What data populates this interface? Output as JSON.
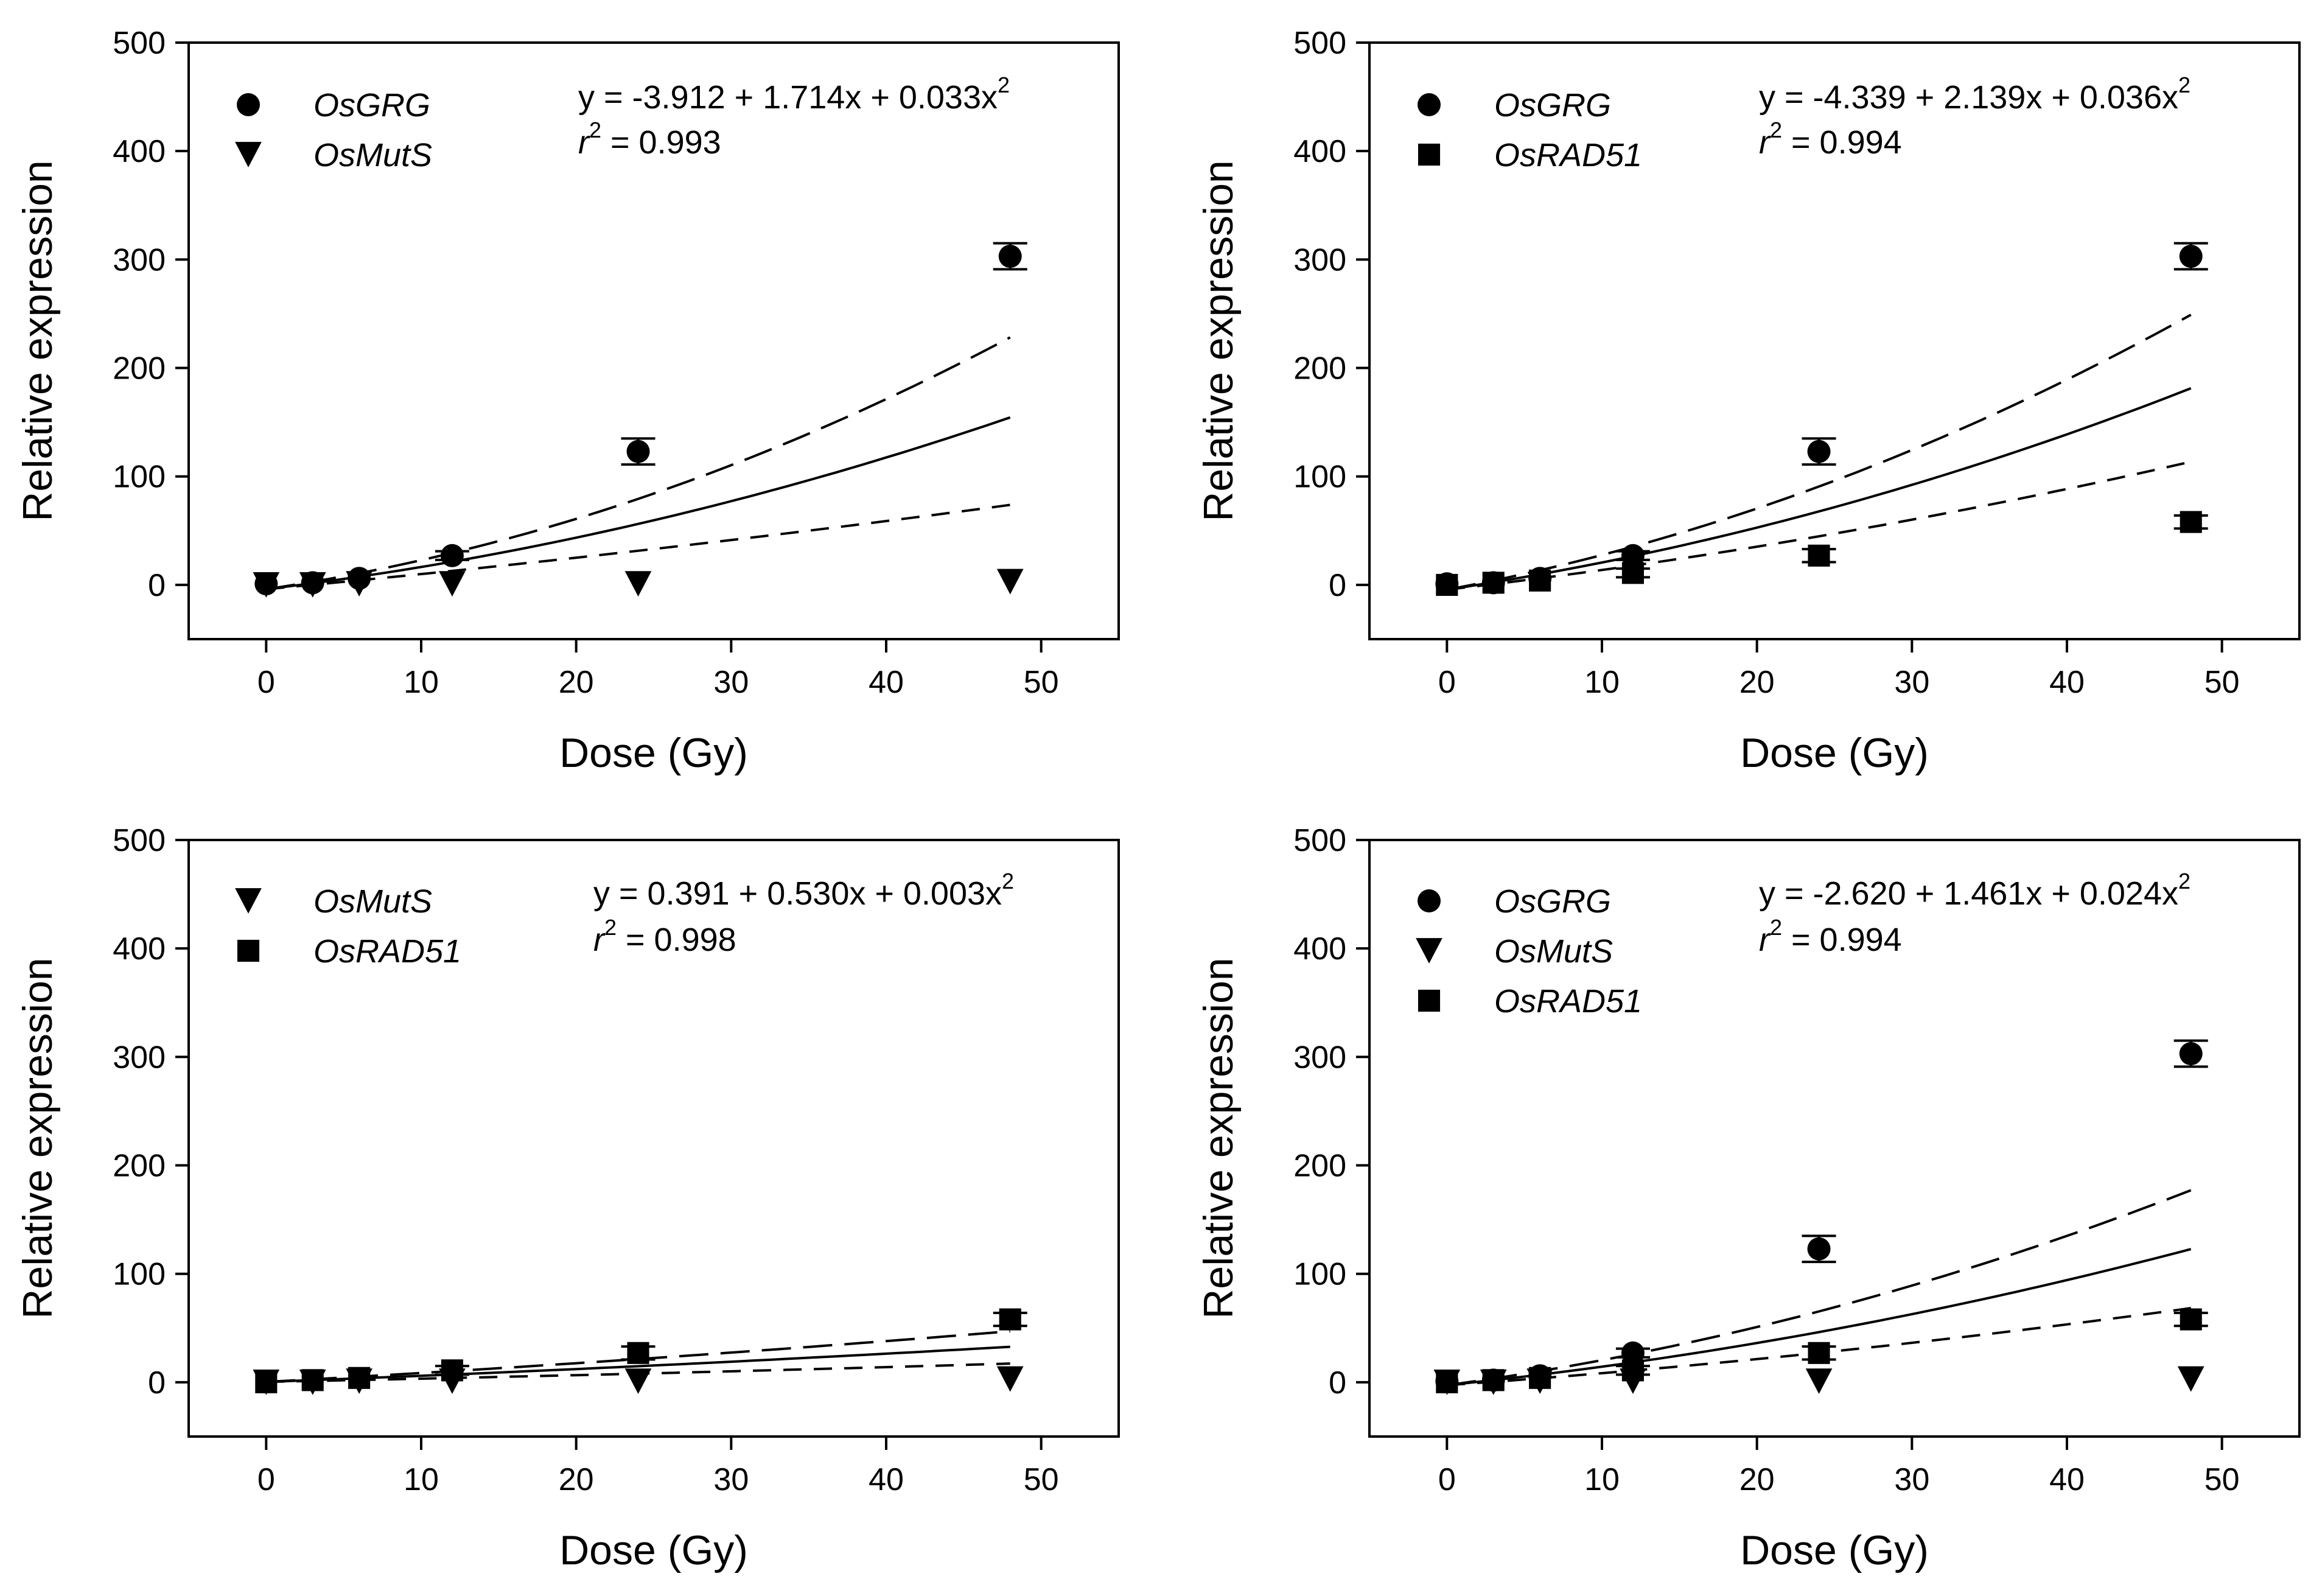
{
  "chart_data": [
    {
      "type": "scatter",
      "panel": "top-left",
      "xlabel": "Dose (Gy)",
      "ylabel": "Relative expression",
      "xlim": [
        -5,
        55
      ],
      "ylim": [
        -50,
        500
      ],
      "xticks": [
        0,
        10,
        20,
        30,
        40,
        50
      ],
      "yticks": [
        0,
        100,
        200,
        300,
        400,
        500
      ],
      "x": [
        0,
        3,
        6,
        12,
        24,
        48
      ],
      "series": [
        {
          "name": "OsGRG",
          "marker": "circle",
          "values": [
            1,
            2,
            6,
            27,
            123,
            303
          ],
          "errors": [
            2,
            2,
            3,
            4,
            12,
            12
          ]
        },
        {
          "name": "OsMutS",
          "marker": "triangle-down",
          "values": [
            0,
            0,
            1,
            1,
            1,
            3
          ],
          "errors": [
            1,
            1,
            1,
            1,
            1,
            1
          ]
        }
      ],
      "fit": {
        "a": -3.912,
        "b": 1.714,
        "c": 0.033,
        "upper": {
          "b": 2.1,
          "c": 0.057
        },
        "lower": {
          "b": 1.33,
          "c": 0.006
        },
        "x_range": [
          0,
          48
        ]
      },
      "equation_line1": "y = -3.912 + 1.714x + 0.033x",
      "equation_sup": "2",
      "r2_label": "r",
      "r2_sup": "2",
      "r2_value": " = 0.993"
    },
    {
      "type": "scatter",
      "panel": "top-right",
      "xlabel": "Dose (Gy)",
      "ylabel": "Relative expression",
      "xlim": [
        -5,
        55
      ],
      "ylim": [
        -50,
        500
      ],
      "xticks": [
        0,
        10,
        20,
        30,
        40,
        50
      ],
      "yticks": [
        0,
        100,
        200,
        300,
        400,
        500
      ],
      "x": [
        0,
        3,
        6,
        12,
        24,
        48
      ],
      "series": [
        {
          "name": "OsGRG",
          "marker": "circle",
          "values": [
            1,
            2,
            6,
            27,
            123,
            303
          ],
          "errors": [
            2,
            2,
            3,
            4,
            12,
            12
          ]
        },
        {
          "name": "OsRAD51",
          "marker": "square",
          "values": [
            0,
            2,
            4,
            11,
            27,
            58
          ],
          "errors": [
            2,
            2,
            2,
            4,
            6,
            6
          ]
        }
      ],
      "fit": {
        "a": -4.339,
        "b": 2.139,
        "c": 0.036,
        "upper": {
          "b": 2.64,
          "c": 0.055
        },
        "lower": {
          "b": 1.64,
          "c": 0.017
        },
        "x_range": [
          0,
          48
        ]
      },
      "equation_line1": "y = -4.339 + 2.139x + 0.036x",
      "equation_sup": "2",
      "r2_label": "r",
      "r2_sup": "2",
      "r2_value": " = 0.994"
    },
    {
      "type": "scatter",
      "panel": "bottom-left",
      "xlabel": "Dose (Gy)",
      "ylabel": "Relative expression",
      "xlim": [
        -5,
        55
      ],
      "ylim": [
        -50,
        500
      ],
      "xticks": [
        0,
        10,
        20,
        30,
        40,
        50
      ],
      "yticks": [
        0,
        100,
        200,
        300,
        400,
        500
      ],
      "x": [
        0,
        3,
        6,
        12,
        24,
        48
      ],
      "series": [
        {
          "name": "OsMutS",
          "marker": "triangle-down",
          "values": [
            0,
            0,
            1,
            1,
            1,
            3
          ],
          "errors": [
            1,
            1,
            1,
            1,
            1,
            1
          ]
        },
        {
          "name": "OsRAD51",
          "marker": "square",
          "values": [
            0,
            2,
            4,
            11,
            27,
            58
          ],
          "errors": [
            2,
            2,
            2,
            4,
            6,
            6
          ]
        }
      ],
      "fit": {
        "a": 0.391,
        "b": 0.53,
        "c": 0.003,
        "upper": {
          "b": 0.78,
          "c": 0.004
        },
        "lower": {
          "b": 0.28,
          "c": 0.0015
        },
        "x_range": [
          0,
          48
        ]
      },
      "equation_line1": "y = 0.391 + 0.530x + 0.003x",
      "equation_sup": "2",
      "r2_label": "r",
      "r2_sup": "2",
      "r2_value": " = 0.998"
    },
    {
      "type": "scatter",
      "panel": "bottom-right",
      "xlabel": "Dose (Gy)",
      "ylabel": "Relative expression",
      "xlim": [
        -5,
        55
      ],
      "ylim": [
        -50,
        500
      ],
      "xticks": [
        0,
        10,
        20,
        30,
        40,
        50
      ],
      "yticks": [
        0,
        100,
        200,
        300,
        400,
        500
      ],
      "x": [
        0,
        3,
        6,
        12,
        24,
        48
      ],
      "series": [
        {
          "name": "OsGRG",
          "marker": "circle",
          "values": [
            1,
            2,
            6,
            27,
            123,
            303
          ],
          "errors": [
            2,
            2,
            3,
            4,
            12,
            12
          ]
        },
        {
          "name": "OsMutS",
          "marker": "triangle-down",
          "values": [
            0,
            0,
            1,
            1,
            1,
            3
          ],
          "errors": [
            1,
            1,
            1,
            1,
            1,
            1
          ]
        },
        {
          "name": "OsRAD51",
          "marker": "square",
          "values": [
            0,
            2,
            4,
            11,
            27,
            58
          ],
          "errors": [
            2,
            2,
            2,
            4,
            6,
            6
          ]
        }
      ],
      "fit": {
        "a": -2.62,
        "b": 1.461,
        "c": 0.024,
        "upper": {
          "b": 1.92,
          "c": 0.038
        },
        "lower": {
          "b": 1.0,
          "c": 0.01
        },
        "x_range": [
          0,
          48
        ]
      },
      "equation_line1": "y = -2.620 + 1.461x + 0.024x",
      "equation_sup": "2",
      "r2_label": "r",
      "r2_sup": "2",
      "r2_value": " = 0.994"
    }
  ]
}
